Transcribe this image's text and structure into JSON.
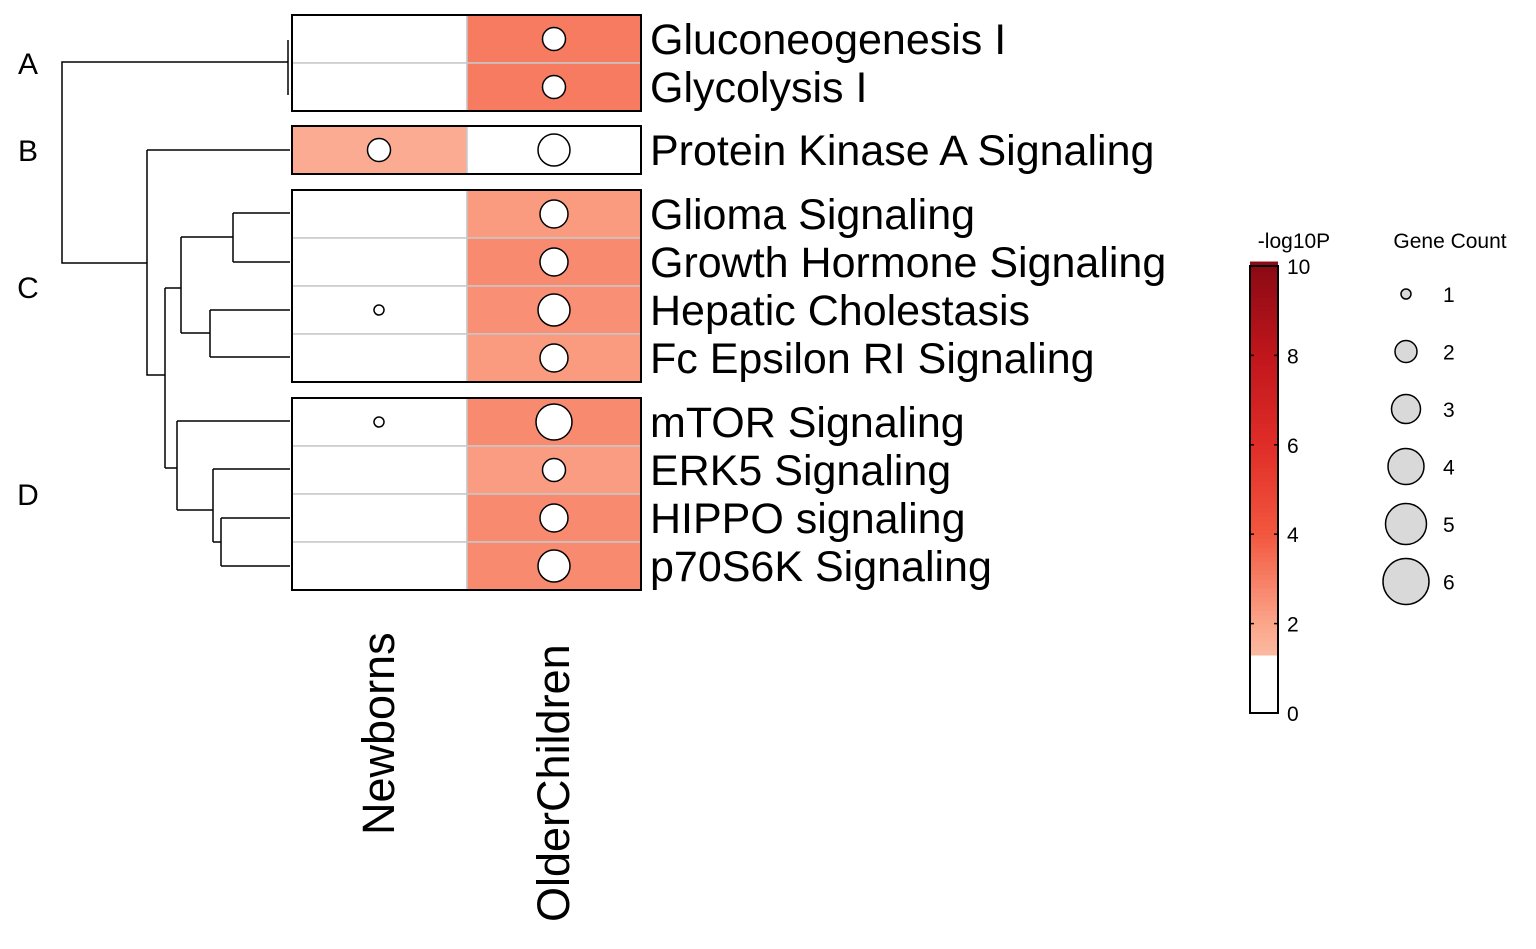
{
  "chart_data": {
    "type": "heatmap",
    "columns": [
      "Newborns",
      "OlderChildren"
    ],
    "groups": [
      {
        "label": "A",
        "rows": [
          "Gluconeogenesis I",
          "Glycolysis I"
        ]
      },
      {
        "label": "B",
        "rows": [
          "Protein Kinase A Signaling"
        ]
      },
      {
        "label": "C",
        "rows": [
          "Glioma Signaling",
          "Growth Hormone Signaling",
          "Hepatic Cholestasis",
          "Fc Epsilon RI Signaling"
        ]
      },
      {
        "label": "D",
        "rows": [
          "mTOR Signaling",
          "ERK5 Signaling",
          "HIPPO signaling",
          "p70S6K Signaling"
        ]
      }
    ],
    "cells": [
      {
        "row": "Gluconeogenesis I",
        "values": [
          null,
          3.1
        ],
        "counts": [
          null,
          2
        ]
      },
      {
        "row": "Glycolysis I",
        "values": [
          null,
          3.1
        ],
        "counts": [
          null,
          2
        ]
      },
      {
        "row": "Protein Kinase A Signaling",
        "values": [
          1.8,
          null
        ],
        "counts": [
          2,
          4
        ]
      },
      {
        "row": "Glioma Signaling",
        "values": [
          null,
          2.3
        ],
        "counts": [
          null,
          3
        ]
      },
      {
        "row": "Growth Hormone Signaling",
        "values": [
          null,
          2.7
        ],
        "counts": [
          null,
          3
        ]
      },
      {
        "row": "Hepatic Cholestasis",
        "values": [
          null,
          2.55
        ],
        "counts": [
          1,
          4
        ]
      },
      {
        "row": "Fc Epsilon RI Signaling",
        "values": [
          null,
          2.3
        ],
        "counts": [
          null,
          3
        ]
      },
      {
        "row": "mTOR Signaling",
        "values": [
          null,
          2.7
        ],
        "counts": [
          1,
          5
        ]
      },
      {
        "row": "ERK5 Signaling",
        "values": [
          null,
          2.25
        ],
        "counts": [
          null,
          2
        ]
      },
      {
        "row": "HIPPO signaling",
        "values": [
          null,
          2.7
        ],
        "counts": [
          null,
          3
        ]
      },
      {
        "row": "p70S6K Signaling",
        "values": [
          null,
          2.7
        ],
        "counts": [
          null,
          4
        ]
      }
    ],
    "color_legend": {
      "title": "-log10P",
      "range": [
        0,
        10
      ],
      "ticks": [
        "0",
        "2",
        "4",
        "6",
        "8",
        "10"
      ],
      "threshold": 1.3,
      "stops": [
        [
          1.3,
          "#fbb9a1"
        ],
        [
          2,
          "#fba68a"
        ],
        [
          4,
          "#f2573f"
        ],
        [
          6,
          "#e02d28"
        ],
        [
          8,
          "#c0161c"
        ],
        [
          10,
          "#8b0a14"
        ]
      ],
      "below_threshold_color": "#ffffff"
    },
    "size_legend": {
      "title": "Gene Count",
      "values": [
        "1",
        "2",
        "3",
        "4",
        "5",
        "6"
      ],
      "fill": "#d9d9d9"
    },
    "dendrogram": "hierarchical clustering of rows (left)"
  }
}
